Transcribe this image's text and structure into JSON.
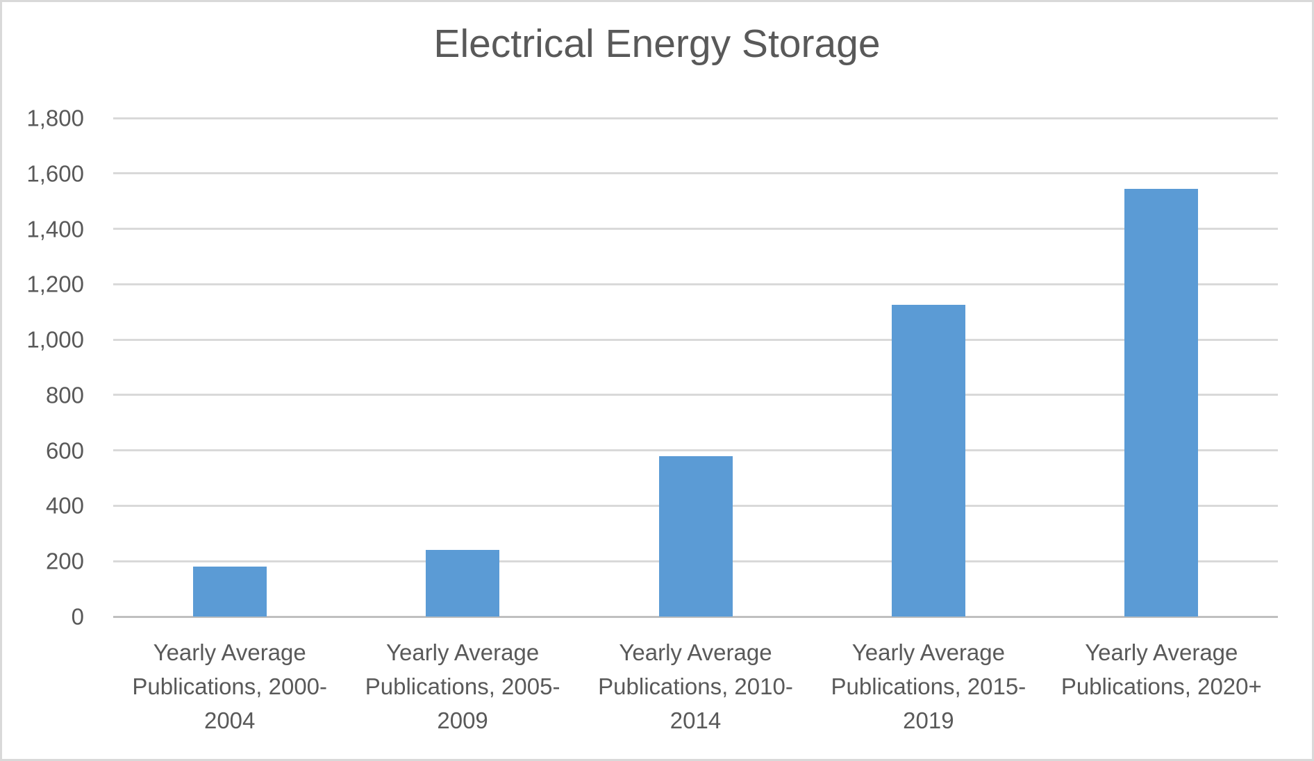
{
  "chart_data": {
    "type": "bar",
    "title": "Electrical Energy Storage",
    "categories": [
      "Yearly Average Publications, 2000-2004",
      "Yearly Average Publications, 2005-2009",
      "Yearly Average Publications, 2010-2014",
      "Yearly Average Publications, 2015-2019",
      "Yearly Average Publications, 2020+"
    ],
    "category_label_lines": [
      [
        "Yearly Average",
        "Publications, 2000-",
        "2004"
      ],
      [
        "Yearly Average",
        "Publications, 2005-",
        "2009"
      ],
      [
        "Yearly Average",
        "Publications, 2010-",
        "2014"
      ],
      [
        "Yearly Average",
        "Publications, 2015-",
        "2019"
      ],
      [
        "Yearly Average",
        "Publications, 2020+"
      ]
    ],
    "values": [
      180,
      240,
      580,
      1125,
      1545
    ],
    "xlabel": "",
    "ylabel": "",
    "ylim": [
      0,
      1800
    ],
    "ytick_step": 200,
    "ytick_labels": [
      "0",
      "200",
      "400",
      "600",
      "800",
      "1,000",
      "1,200",
      "1,400",
      "1,600",
      "1,800"
    ],
    "grid": "horizontal",
    "legend": "none",
    "colors": {
      "bar_fill": "#5B9BD5",
      "gridline": "#D9D9D9",
      "axis_line": "#BFBFBF",
      "text": "#595959",
      "background": "#FFFFFF",
      "frame_border": "#D9D9D9"
    }
  }
}
